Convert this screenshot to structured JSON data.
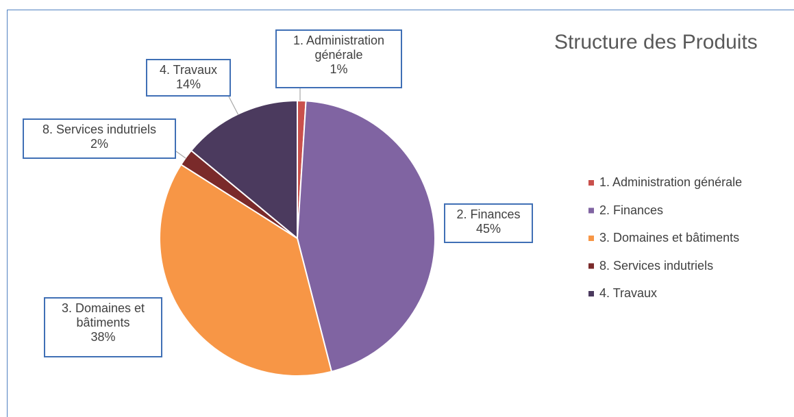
{
  "chart_data": {
    "type": "pie",
    "title": "Structure des Produits",
    "categories": [
      "1. Administration générale",
      "2. Finances",
      "3. Domaines et bâtiments",
      "8. Services indutriels",
      "4. Travaux"
    ],
    "values": [
      1,
      45,
      38,
      2,
      14
    ],
    "value_labels": [
      "1%",
      "45%",
      "38%",
      "2%",
      "14%"
    ],
    "colors": [
      "#c9504c",
      "#8064a2",
      "#f79646",
      "#7a2a2a",
      "#4b3a5e"
    ],
    "legend": "right"
  }
}
